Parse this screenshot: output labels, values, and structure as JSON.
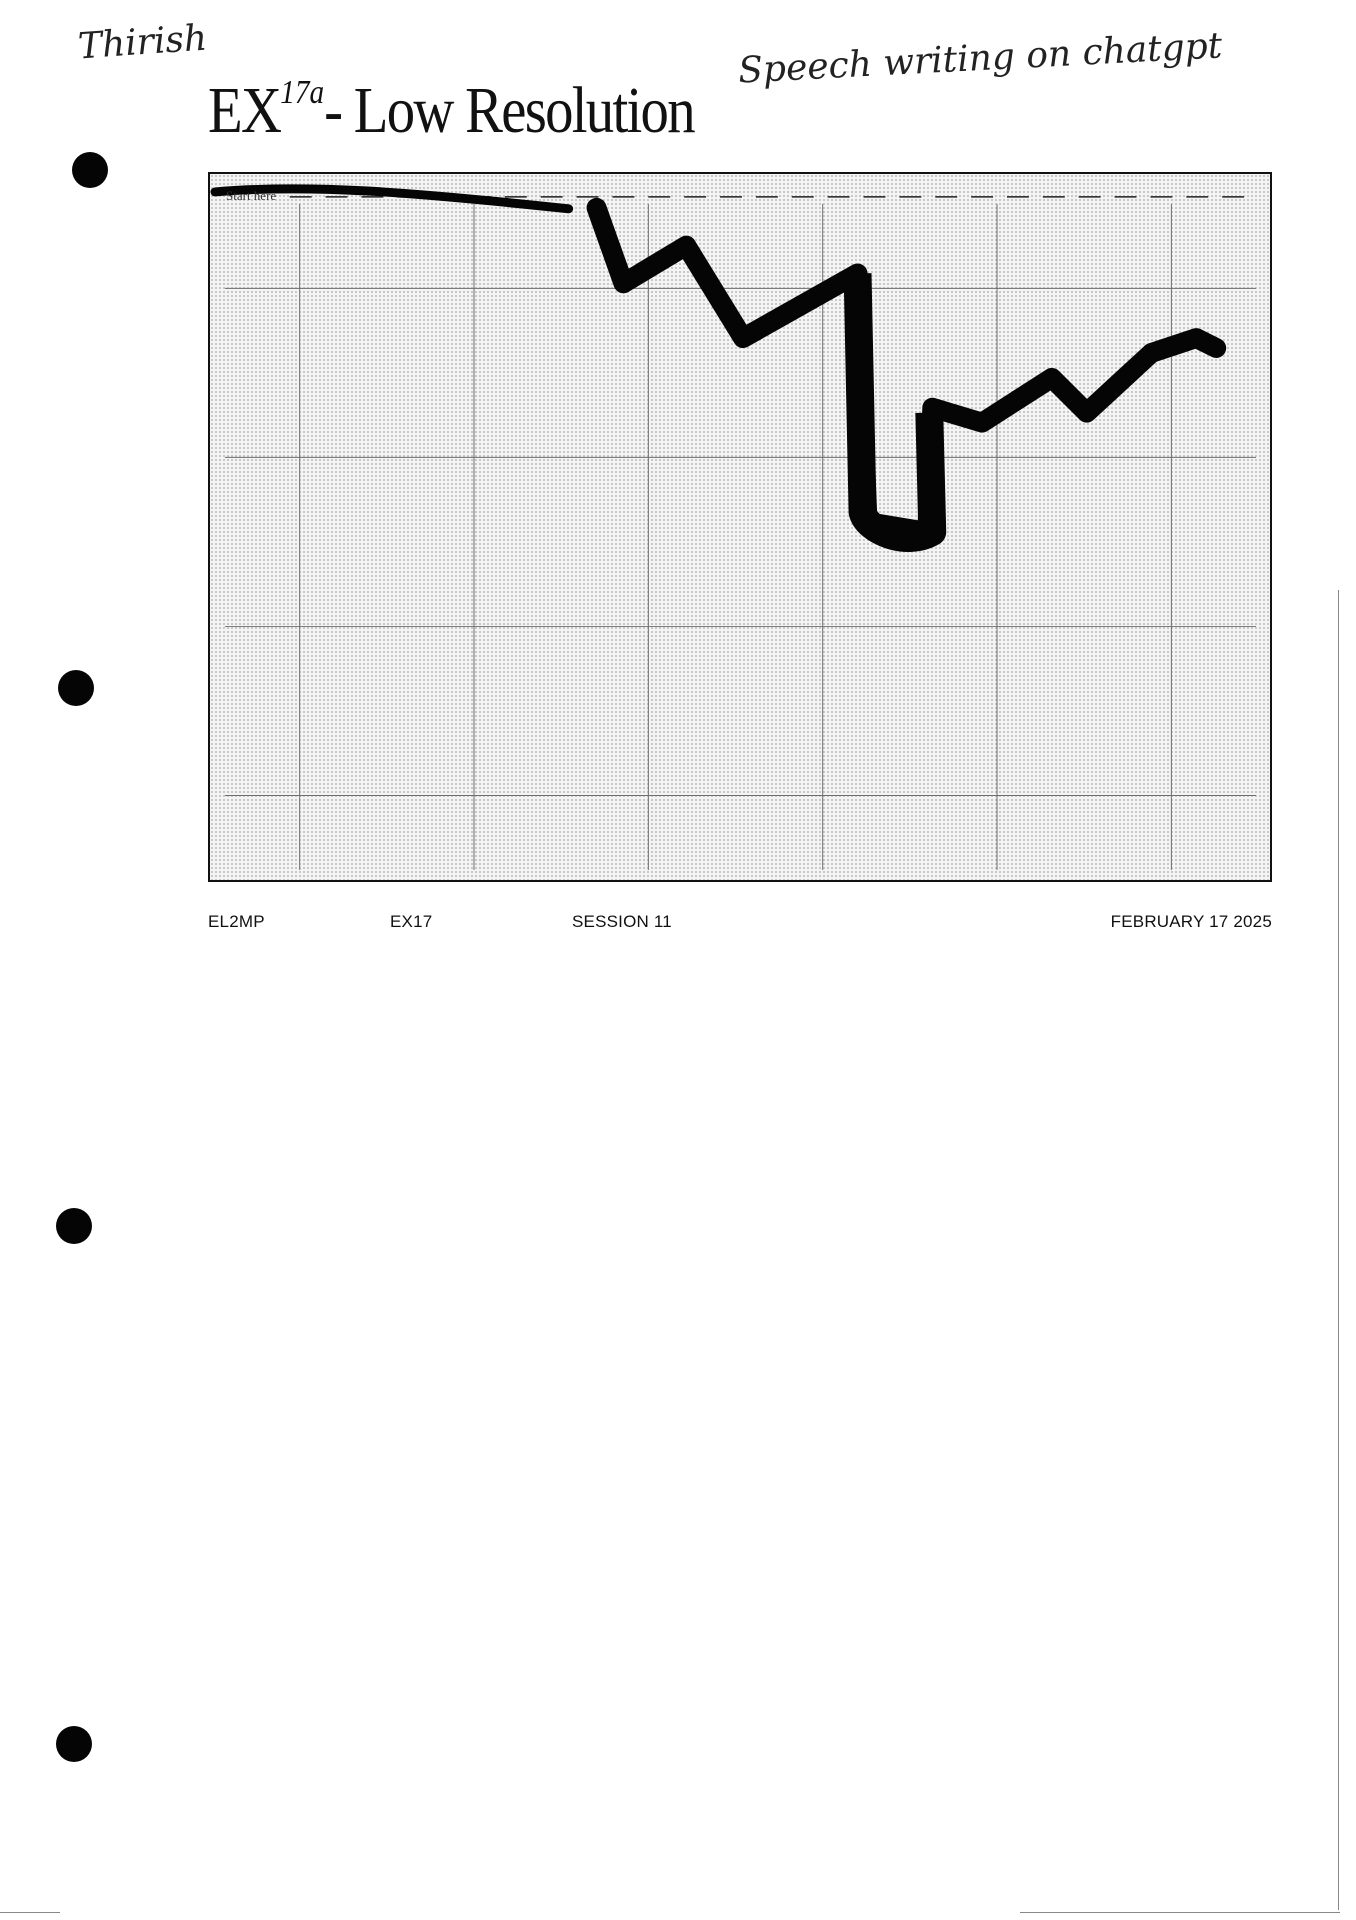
{
  "handwriting": {
    "top_left": "Thirish",
    "top_right": "Speech writing on chatgpt"
  },
  "title": {
    "prefix": "EX",
    "superscript": "17a",
    "suffix": "- Low Resolution"
  },
  "chart": {
    "start_label": "Start here"
  },
  "footer": {
    "course": "EL2MP",
    "exercise": "EX17",
    "session": "SESSION 11",
    "date": "FEBRUARY 17 2025"
  },
  "colors": {
    "ink": "#050505",
    "grid": "#6e6e6e",
    "paper": "#ffffff"
  }
}
